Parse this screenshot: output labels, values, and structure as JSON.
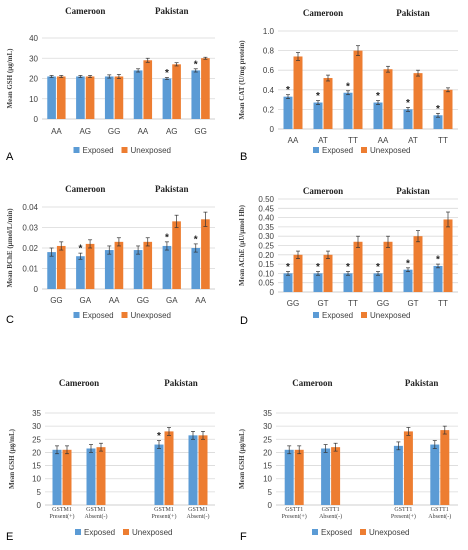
{
  "colors": {
    "exposed": "#5b9bd5",
    "unexposed": "#ed7d31",
    "grid": "#d9d9d9",
    "axis": "#bfbfbf",
    "text": "#404040"
  },
  "legend": {
    "exposed": "Exposed",
    "unexposed": "Unexposed"
  },
  "chart_data": [
    {
      "panel": "A",
      "type": "bar",
      "ylabel": "Mean GSH (µg/mL)",
      "ylim": [
        0,
        40
      ],
      "yticks": [
        0,
        10,
        20,
        30,
        40
      ],
      "groups": [
        "Cameroon",
        "Pakistan"
      ],
      "categories": [
        "AA",
        "AG",
        "GG",
        "AA",
        "AG",
        "GG"
      ],
      "series": [
        {
          "name": "Exposed",
          "values": [
            21,
            21,
            21,
            24,
            20,
            24
          ],
          "errors": [
            0.5,
            0.5,
            0.8,
            0.8,
            0.5,
            0.8
          ]
        },
        {
          "name": "Unexposed",
          "values": [
            21,
            21,
            21,
            29,
            27,
            30
          ],
          "errors": [
            0.5,
            0.5,
            1.0,
            1.0,
            0.8,
            0.5
          ]
        }
      ],
      "significant": [
        false,
        false,
        false,
        false,
        true,
        true
      ],
      "legend": "bottom",
      "grid": true
    },
    {
      "panel": "B",
      "type": "bar",
      "ylabel": "Mean CAT (U/mg protein)",
      "ylim": [
        0,
        1
      ],
      "yticks": [
        0,
        0.2,
        0.4,
        0.6,
        0.8,
        1
      ],
      "groups": [
        "Cameroon",
        "Pakistan"
      ],
      "categories": [
        "AA",
        "AT",
        "TT",
        "AA",
        "AT",
        "TT"
      ],
      "series": [
        {
          "name": "Exposed",
          "values": [
            0.33,
            0.27,
            0.37,
            0.27,
            0.2,
            0.14
          ],
          "errors": [
            0.02,
            0.02,
            0.02,
            0.02,
            0.02,
            0.02
          ]
        },
        {
          "name": "Unexposed",
          "values": [
            0.74,
            0.52,
            0.8,
            0.61,
            0.57,
            0.4
          ],
          "errors": [
            0.04,
            0.03,
            0.05,
            0.03,
            0.03,
            0.02
          ]
        }
      ],
      "significant": [
        true,
        true,
        true,
        true,
        true,
        true
      ],
      "legend": "bottom",
      "grid": true
    },
    {
      "panel": "C",
      "type": "bar",
      "ylabel": "Mean BChE (µmol/L/min)",
      "ylim": [
        0,
        0.04
      ],
      "yticks": [
        0,
        0.01,
        0.02,
        0.03,
        0.04
      ],
      "groups": [
        "Cameroon",
        "Pakistan"
      ],
      "categories": [
        "GG",
        "GA",
        "AA",
        "GG",
        "GA",
        "AA"
      ],
      "series": [
        {
          "name": "Exposed",
          "values": [
            0.018,
            0.016,
            0.019,
            0.019,
            0.021,
            0.02
          ],
          "errors": [
            0.002,
            0.0015,
            0.002,
            0.002,
            0.002,
            0.002
          ]
        },
        {
          "name": "Unexposed",
          "values": [
            0.021,
            0.022,
            0.023,
            0.023,
            0.033,
            0.034
          ],
          "errors": [
            0.002,
            0.002,
            0.002,
            0.002,
            0.003,
            0.0035
          ]
        }
      ],
      "significant": [
        false,
        true,
        false,
        false,
        true,
        true
      ],
      "legend": "bottom",
      "grid": true
    },
    {
      "panel": "D",
      "type": "bar",
      "ylabel": "Mean AChE (µU/µmol Hb)",
      "ylim": [
        0,
        0.5
      ],
      "yticks": [
        0,
        0.05,
        0.1,
        0.15,
        0.2,
        0.25,
        0.3,
        0.35,
        0.4,
        0.45,
        0.5
      ],
      "groups": [
        "Cameroon",
        "Pakistan"
      ],
      "categories": [
        "GG",
        "GT",
        "TT",
        "GG",
        "GT",
        "TT"
      ],
      "series": [
        {
          "name": "Exposed",
          "values": [
            0.1,
            0.1,
            0.1,
            0.1,
            0.12,
            0.14
          ],
          "errors": [
            0.01,
            0.01,
            0.01,
            0.01,
            0.01,
            0.01
          ]
        },
        {
          "name": "Unexposed",
          "values": [
            0.2,
            0.2,
            0.27,
            0.27,
            0.3,
            0.39
          ],
          "errors": [
            0.02,
            0.02,
            0.03,
            0.03,
            0.03,
            0.04
          ]
        }
      ],
      "significant": [
        true,
        true,
        true,
        true,
        true,
        true
      ],
      "legend": "bottom",
      "grid": true
    },
    {
      "panel": "E",
      "type": "bar",
      "ylabel": "Mean GSH (µg/mL)",
      "ylim": [
        0,
        35
      ],
      "yticks": [
        0,
        5,
        10,
        15,
        20,
        25,
        30,
        35
      ],
      "groups": [
        "Cameroon",
        "Pakistan"
      ],
      "categories": [
        "GSTM1 Present(+)",
        "GSTM1 Absent(-)",
        "GSTM1 Present(+)",
        "GSTM1 Absent(-)"
      ],
      "series": [
        {
          "name": "Exposed",
          "values": [
            21,
            21.5,
            23,
            26.5
          ],
          "errors": [
            1.5,
            1.5,
            1.5,
            1.5
          ]
        },
        {
          "name": "Unexposed",
          "values": [
            21,
            22,
            28,
            26.5
          ],
          "errors": [
            1.5,
            1.5,
            1.5,
            1.5
          ]
        }
      ],
      "significant": [
        false,
        false,
        true,
        false
      ],
      "legend": "bottom",
      "grid": true
    },
    {
      "panel": "F",
      "type": "bar",
      "ylabel": "Mean GSH (µg/mL)",
      "ylim": [
        0,
        35
      ],
      "yticks": [
        0,
        5,
        10,
        15,
        20,
        25,
        30,
        35
      ],
      "groups": [
        "Cameroon",
        "Pakistan"
      ],
      "categories": [
        "GSTT1 Present(+)",
        "GSTT1 Absent(-)",
        "GSTT1 Present(+)",
        "GSTT1 Absent(-)"
      ],
      "series": [
        {
          "name": "Exposed",
          "values": [
            21,
            21.5,
            22.5,
            23
          ],
          "errors": [
            1.5,
            1.5,
            1.5,
            1.5
          ]
        },
        {
          "name": "Unexposed",
          "values": [
            21,
            22,
            28,
            28.5
          ],
          "errors": [
            1.5,
            1.5,
            1.5,
            1.5
          ]
        }
      ],
      "significant": [
        false,
        false,
        false,
        false
      ],
      "legend": "bottom",
      "grid": true
    }
  ]
}
